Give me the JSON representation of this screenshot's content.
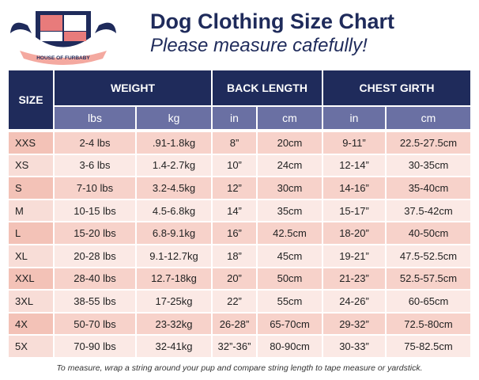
{
  "logo": {
    "text": "HOUSE OF FURBABY"
  },
  "header": {
    "title": "Dog Clothing Size Chart",
    "subtitle": "Please measure cafefully!"
  },
  "table": {
    "groups": [
      {
        "label": "SIZE",
        "span": 1
      },
      {
        "label": "WEIGHT",
        "span": 2
      },
      {
        "label": "BACK LENGTH",
        "span": 2
      },
      {
        "label": "CHEST GIRTH",
        "span": 2
      }
    ],
    "units": [
      "lbs",
      "kg",
      "in",
      "cm",
      "in",
      "cm"
    ],
    "rows": [
      [
        "XXS",
        "2-4 lbs",
        ".91-1.8kg",
        "8”",
        "20cm",
        "9-11”",
        "22.5-27.5cm"
      ],
      [
        "XS",
        "3-6 lbs",
        "1.4-2.7kg",
        "10”",
        "24cm",
        "12-14”",
        "30-35cm"
      ],
      [
        "S",
        "7-10 lbs",
        "3.2-4.5kg",
        "12”",
        "30cm",
        "14-16”",
        "35-40cm"
      ],
      [
        "M",
        "10-15 lbs",
        "4.5-6.8kg",
        "14”",
        "35cm",
        "15-17”",
        "37.5-42cm"
      ],
      [
        "L",
        "15-20 lbs",
        "6.8-9.1kg",
        "16”",
        "42.5cm",
        "18-20”",
        "40-50cm"
      ],
      [
        "XL",
        "20-28 lbs",
        "9.1-12.7kg",
        "18”",
        "45cm",
        "19-21”",
        "47.5-52.5cm"
      ],
      [
        "XXL",
        "28-40 lbs",
        "12.7-18kg",
        "20”",
        "50cm",
        "21-23”",
        "52.5-57.5cm"
      ],
      [
        "3XL",
        "38-55 lbs",
        "17-25kg",
        "22”",
        "55cm",
        "24-26”",
        "60-65cm"
      ],
      [
        "4X",
        "50-70 lbs",
        "23-32kg",
        "26-28”",
        "65-70cm",
        "29-32”",
        "72.5-80cm"
      ],
      [
        "5X",
        "70-90 lbs",
        "32-41kg",
        "32”-36”",
        "80-90cm",
        "30-33”",
        "75-82.5cm"
      ]
    ]
  },
  "footer": {
    "note": "To measure, wrap a string around your pup and compare string length to tape measure or yardstick."
  }
}
